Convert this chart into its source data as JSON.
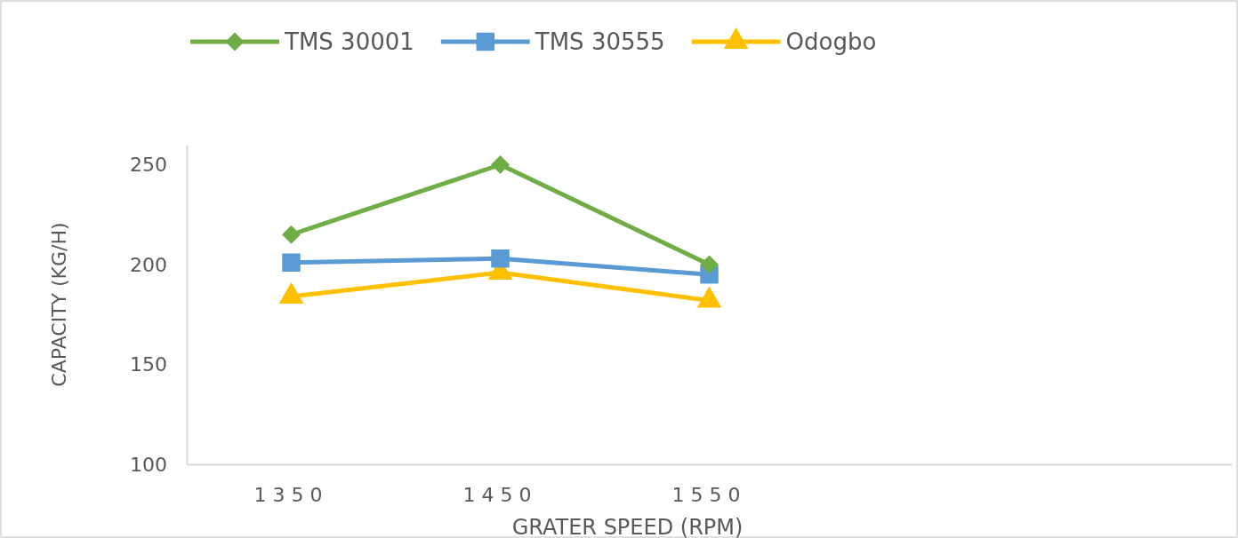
{
  "chart_data": {
    "type": "line",
    "xlabel": "GRATER SPEED (RPM)",
    "ylabel": "CAPACITY (KG/H)",
    "categories": [
      "1350",
      "1450",
      "1550",
      null,
      null
    ],
    "series": [
      {
        "name": "TMS 30001",
        "color": "#70ad47",
        "marker": "diamond",
        "values": [
          215,
          250,
          200,
          null,
          null
        ]
      },
      {
        "name": "TMS 30555",
        "color": "#5b9bd5",
        "marker": "square",
        "values": [
          201,
          203,
          195,
          null,
          null
        ]
      },
      {
        "name": "Odogbo",
        "color": "#ffc000",
        "marker": "triangle",
        "values": [
          184,
          196,
          182,
          null,
          null
        ]
      }
    ],
    "ylim": [
      100,
      260
    ],
    "yticks": [
      100,
      150,
      200,
      250
    ],
    "grid": false,
    "legend": "top",
    "line_style": "solid"
  }
}
